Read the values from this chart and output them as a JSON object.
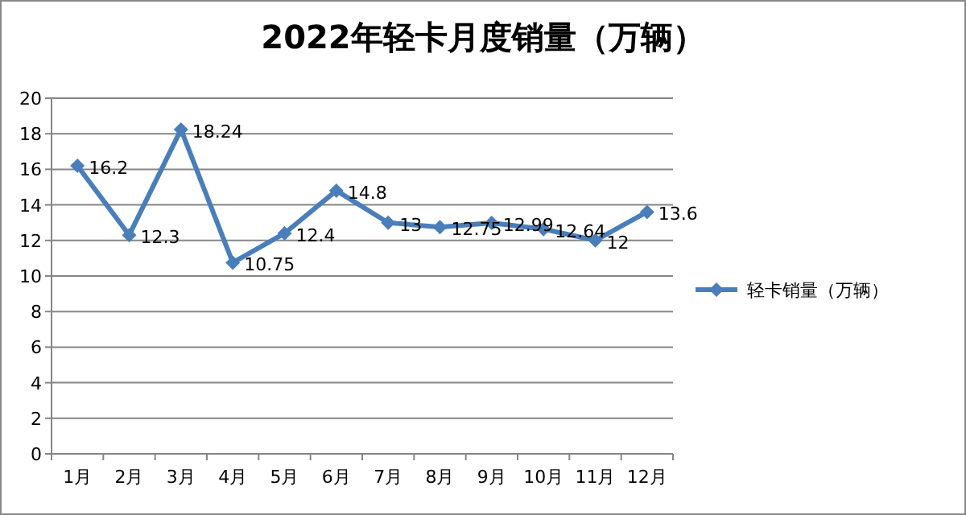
{
  "chart_data": {
    "type": "line",
    "title": "2022年轻卡月度销量（万辆）",
    "categories": [
      "1月",
      "2月",
      "3月",
      "4月",
      "5月",
      "6月",
      "7月",
      "8月",
      "9月",
      "10月",
      "11月",
      "12月"
    ],
    "series": [
      {
        "name": "轻卡销量（万辆）",
        "color": "#4a7ebb",
        "values": [
          16.2,
          12.3,
          18.24,
          10.75,
          12.4,
          14.8,
          13,
          12.75,
          12.99,
          12.64,
          12,
          13.6
        ]
      }
    ],
    "ylim": [
      0,
      20
    ],
    "yticks": [
      0,
      2,
      4,
      6,
      8,
      10,
      12,
      14,
      16,
      18,
      20
    ],
    "grid": "y",
    "legend": "right",
    "marker": "diamond",
    "line_style": "solid",
    "data_labels": true
  }
}
